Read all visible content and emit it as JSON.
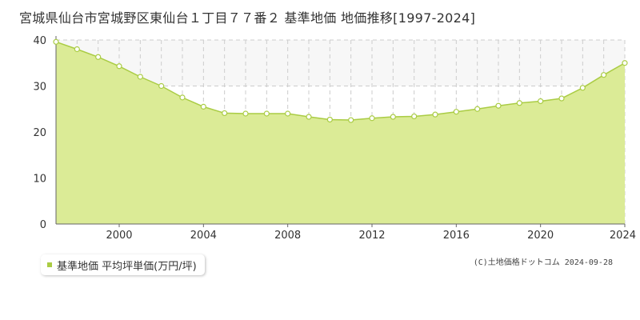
{
  "title": "宮城県仙台市宮城野区東仙台１丁目７７番２ 基準地価 地価推移[1997-2024]",
  "legend_label": "基準地価 平均坪単価(万円/坪)",
  "credit": "(C)土地価格ドットコム 2024-09-28",
  "colors": {
    "fill": "#dbeb96",
    "line": "#aacc44",
    "point_fill": "#ffffff",
    "grid": "#cccccc",
    "axis": "#666666",
    "band": "#f7f7f7"
  },
  "chart_data": {
    "type": "area",
    "title": "",
    "xlabel": "",
    "ylabel": "",
    "xlim": [
      1997,
      2024
    ],
    "ylim": [
      0,
      40
    ],
    "yticks": [
      0,
      10,
      20,
      30,
      40
    ],
    "xticks": [
      2000,
      2004,
      2008,
      2012,
      2016,
      2020,
      2024
    ],
    "grid": true,
    "legend_position": "bottom-left",
    "series": [
      {
        "name": "基準地価 平均坪単価(万円/坪)",
        "x": [
          1997,
          1998,
          1999,
          2000,
          2001,
          2002,
          2003,
          2004,
          2005,
          2006,
          2007,
          2008,
          2009,
          2010,
          2011,
          2012,
          2013,
          2014,
          2015,
          2016,
          2017,
          2018,
          2019,
          2020,
          2021,
          2022,
          2023,
          2024
        ],
        "values": [
          39.6,
          38.0,
          36.3,
          34.3,
          32.0,
          30.0,
          27.5,
          25.5,
          24.1,
          24.0,
          24.0,
          24.0,
          23.3,
          22.7,
          22.6,
          23.0,
          23.3,
          23.4,
          23.8,
          24.4,
          25.0,
          25.7,
          26.3,
          26.7,
          27.3,
          29.6,
          32.4,
          35.0
        ]
      }
    ]
  }
}
